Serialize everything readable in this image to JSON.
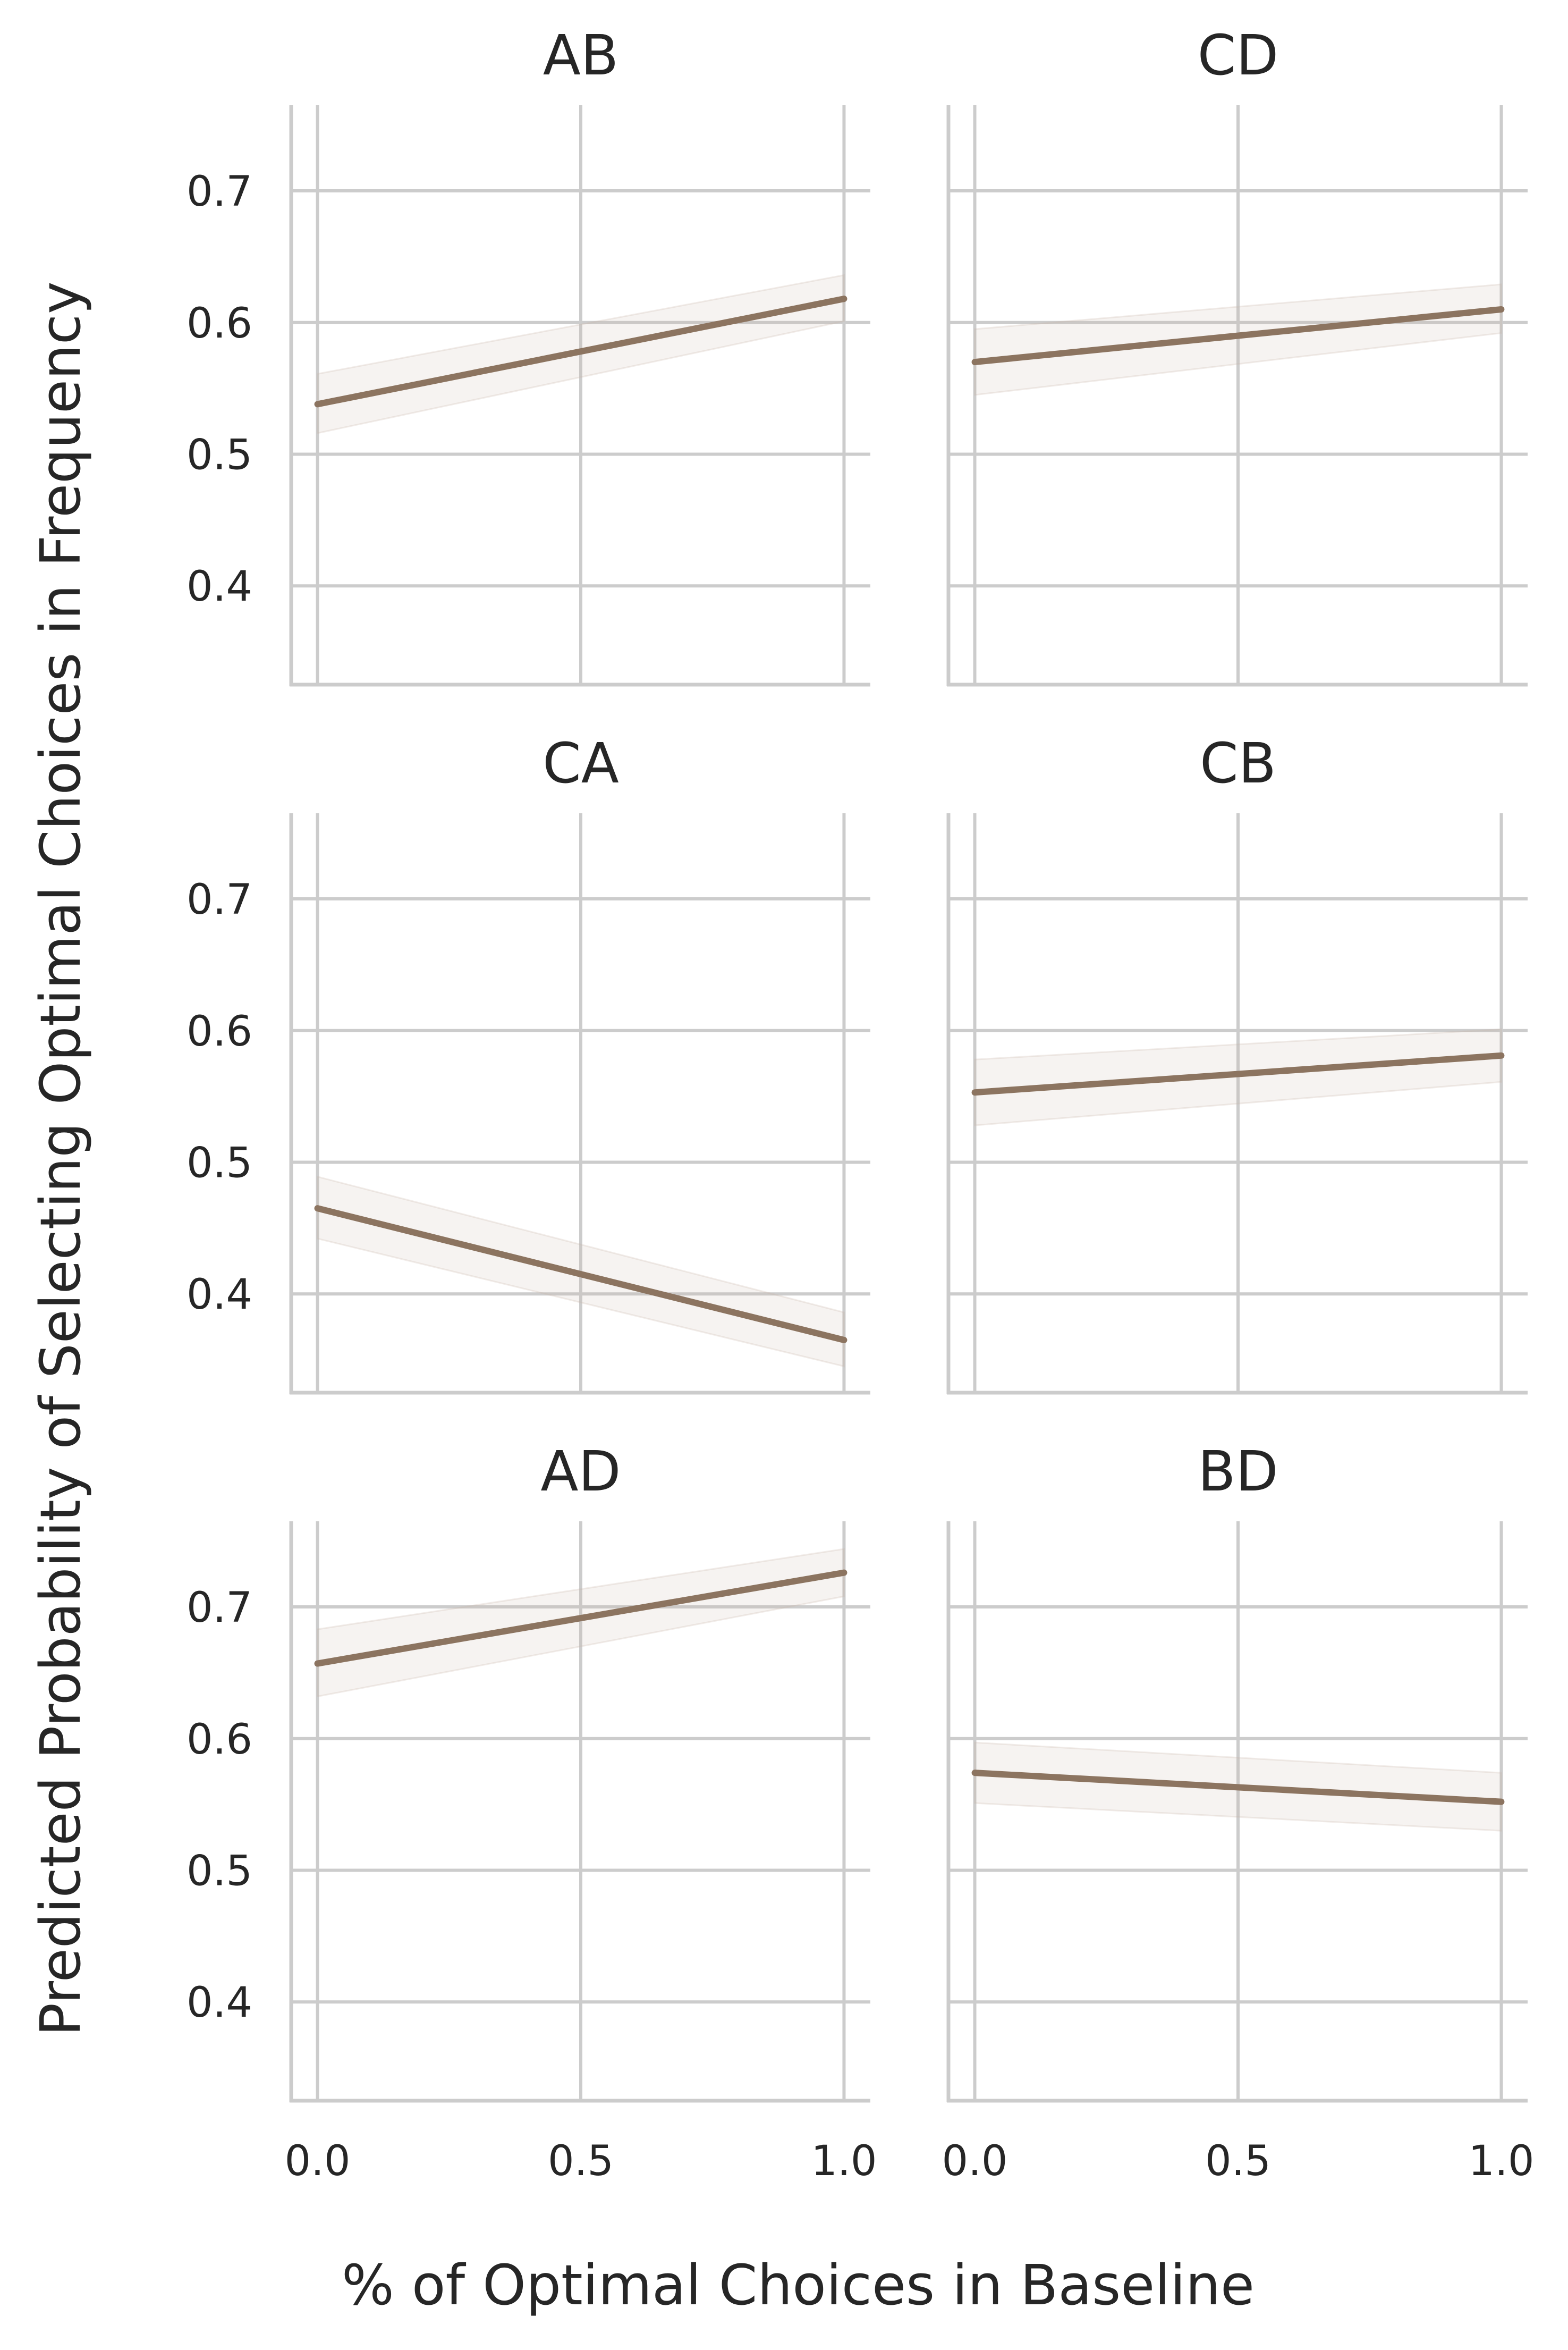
{
  "chart_data": {
    "type": "line",
    "xlabel": "% of Optimal Choices in Baseline",
    "ylabel": "Predicted Probability of Selecting Optimal Choices in Frequency",
    "xlim": [
      -0.05,
      1.05
    ],
    "ylim": [
      0.325,
      0.765
    ],
    "xticks": [
      0.0,
      0.5,
      1.0
    ],
    "xtick_labels": [
      "0.0",
      "0.5",
      "1.0"
    ],
    "yticks": [
      0.4,
      0.5,
      0.6,
      0.7
    ],
    "ytick_labels": [
      "0.4",
      "0.5",
      "0.6",
      "0.7"
    ],
    "grid": true,
    "line_color": "#8c7460",
    "band_color": "#c9b2a6",
    "grid_color": "#cccccc",
    "facets": [
      {
        "title": "AB",
        "x": [
          0,
          1
        ],
        "y": [
          0.538,
          0.618
        ],
        "lower": [
          0.516,
          0.601
        ],
        "upper": [
          0.561,
          0.636
        ]
      },
      {
        "title": "CD",
        "x": [
          0,
          1
        ],
        "y": [
          0.57,
          0.61
        ],
        "lower": [
          0.545,
          0.592
        ],
        "upper": [
          0.595,
          0.629
        ]
      },
      {
        "title": "CA",
        "x": [
          0,
          1
        ],
        "y": [
          0.465,
          0.365
        ],
        "lower": [
          0.442,
          0.345
        ],
        "upper": [
          0.489,
          0.386
        ]
      },
      {
        "title": "CB",
        "x": [
          0,
          1
        ],
        "y": [
          0.553,
          0.581
        ],
        "lower": [
          0.528,
          0.561
        ],
        "upper": [
          0.578,
          0.601
        ]
      },
      {
        "title": "AD",
        "x": [
          0,
          1
        ],
        "y": [
          0.657,
          0.726
        ],
        "lower": [
          0.632,
          0.708
        ],
        "upper": [
          0.683,
          0.744
        ]
      },
      {
        "title": "BD",
        "x": [
          0,
          1
        ],
        "y": [
          0.574,
          0.552
        ],
        "lower": [
          0.551,
          0.53
        ],
        "upper": [
          0.597,
          0.574
        ]
      }
    ]
  }
}
